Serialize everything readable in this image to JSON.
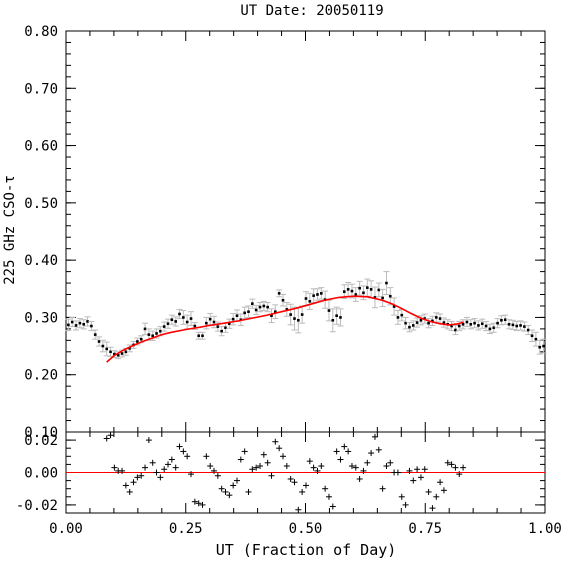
{
  "chart_data": [
    {
      "type": "scatter",
      "title": "UT Date: 20050119",
      "xlabel": "",
      "ylabel": "225 GHz CSO-τ",
      "xlim": [
        0.0,
        1.0
      ],
      "ylim": [
        0.1,
        0.8
      ],
      "yticks": [
        "0.80",
        "0.70",
        "0.60",
        "0.50",
        "0.40",
        "0.30",
        "0.20",
        "0.10"
      ],
      "grid": false,
      "series": [
        {
          "marker": "dot-with-errorbar",
          "color": "#000000",
          "errorbar_color": "#bbbbbb",
          "x": [
            0.005,
            0.013,
            0.021,
            0.029,
            0.037,
            0.045,
            0.053,
            0.061,
            0.069,
            0.077,
            0.085,
            0.093,
            0.101,
            0.109,
            0.117,
            0.125,
            0.133,
            0.141,
            0.149,
            0.157,
            0.165,
            0.173,
            0.181,
            0.189,
            0.197,
            0.205,
            0.213,
            0.221,
            0.229,
            0.237,
            0.245,
            0.253,
            0.261,
            0.269,
            0.277,
            0.285,
            0.293,
            0.301,
            0.309,
            0.317,
            0.325,
            0.333,
            0.341,
            0.349,
            0.357,
            0.365,
            0.373,
            0.381,
            0.389,
            0.397,
            0.405,
            0.413,
            0.421,
            0.429,
            0.437,
            0.445,
            0.453,
            0.461,
            0.469,
            0.477,
            0.485,
            0.493,
            0.501,
            0.509,
            0.517,
            0.525,
            0.533,
            0.541,
            0.549,
            0.557,
            0.565,
            0.573,
            0.581,
            0.589,
            0.597,
            0.605,
            0.613,
            0.621,
            0.629,
            0.637,
            0.645,
            0.653,
            0.661,
            0.669,
            0.677,
            0.685,
            0.693,
            0.701,
            0.709,
            0.717,
            0.725,
            0.733,
            0.741,
            0.749,
            0.757,
            0.765,
            0.773,
            0.781,
            0.789,
            0.797,
            0.805,
            0.813,
            0.821,
            0.829,
            0.837,
            0.845,
            0.853,
            0.861,
            0.869,
            0.877,
            0.885,
            0.893,
            0.901,
            0.909,
            0.917,
            0.925,
            0.933,
            0.941,
            0.949,
            0.957,
            0.965,
            0.973,
            0.981,
            0.989,
            0.997
          ],
          "y": [
            0.287,
            0.292,
            0.286,
            0.29,
            0.288,
            0.293,
            0.285,
            0.27,
            0.258,
            0.25,
            0.245,
            0.24,
            0.236,
            0.234,
            0.237,
            0.24,
            0.246,
            0.252,
            0.258,
            0.262,
            0.28,
            0.27,
            0.268,
            0.272,
            0.276,
            0.284,
            0.289,
            0.296,
            0.293,
            0.306,
            0.3,
            0.292,
            0.298,
            0.285,
            0.268,
            0.268,
            0.29,
            0.297,
            0.292,
            0.284,
            0.276,
            0.282,
            0.289,
            0.297,
            0.303,
            0.296,
            0.308,
            0.31,
            0.324,
            0.313,
            0.318,
            0.32,
            0.318,
            0.303,
            0.31,
            0.342,
            0.33,
            0.314,
            0.305,
            0.298,
            0.295,
            0.305,
            0.333,
            0.328,
            0.338,
            0.34,
            0.342,
            0.331,
            0.312,
            0.295,
            0.303,
            0.3,
            0.345,
            0.349,
            0.346,
            0.34,
            0.351,
            0.343,
            0.352,
            0.349,
            0.335,
            0.348,
            0.334,
            0.36,
            0.337,
            0.319,
            0.3,
            0.304,
            0.29,
            0.283,
            0.286,
            0.291,
            0.295,
            0.298,
            0.29,
            0.294,
            0.3,
            0.298,
            0.291,
            0.288,
            0.285,
            0.278,
            0.285,
            0.288,
            0.292,
            0.288,
            0.29,
            0.286,
            0.289,
            0.285,
            0.28,
            0.282,
            0.29,
            0.295,
            0.296,
            0.288,
            0.287,
            0.285,
            0.286,
            0.284,
            0.278,
            0.268,
            0.262,
            0.248,
            0.25
          ],
          "yerr": [
            0.01,
            0.008,
            0.008,
            0.008,
            0.008,
            0.008,
            0.008,
            0.008,
            0.008,
            0.01,
            0.012,
            0.008,
            0.006,
            0.006,
            0.006,
            0.006,
            0.006,
            0.006,
            0.006,
            0.006,
            0.01,
            0.01,
            0.008,
            0.008,
            0.008,
            0.008,
            0.008,
            0.008,
            0.008,
            0.008,
            0.012,
            0.012,
            0.012,
            0.006,
            0.006,
            0.006,
            0.01,
            0.01,
            0.01,
            0.008,
            0.008,
            0.008,
            0.008,
            0.01,
            0.01,
            0.01,
            0.01,
            0.01,
            0.008,
            0.008,
            0.008,
            0.008,
            0.008,
            0.012,
            0.012,
            0.006,
            0.01,
            0.012,
            0.018,
            0.02,
            0.022,
            0.015,
            0.012,
            0.014,
            0.012,
            0.01,
            0.01,
            0.015,
            0.018,
            0.02,
            0.015,
            0.015,
            0.012,
            0.012,
            0.012,
            0.012,
            0.012,
            0.012,
            0.015,
            0.015,
            0.018,
            0.012,
            0.015,
            0.02,
            0.015,
            0.015,
            0.012,
            0.01,
            0.01,
            0.008,
            0.008,
            0.008,
            0.008,
            0.008,
            0.008,
            0.008,
            0.008,
            0.008,
            0.008,
            0.008,
            0.008,
            0.008,
            0.008,
            0.008,
            0.008,
            0.008,
            0.008,
            0.008,
            0.008,
            0.008,
            0.008,
            0.008,
            0.008,
            0.008,
            0.008,
            0.008,
            0.008,
            0.008,
            0.008,
            0.008,
            0.008,
            0.01,
            0.012,
            0.012,
            0.012
          ]
        },
        {
          "marker": "line",
          "color": "#ff0000",
          "x": [
            0.085,
            0.1,
            0.12,
            0.14,
            0.16,
            0.18,
            0.2,
            0.22,
            0.25,
            0.28,
            0.3,
            0.33,
            0.36,
            0.39,
            0.42,
            0.45,
            0.48,
            0.51,
            0.54,
            0.57,
            0.6,
            0.63,
            0.66,
            0.68,
            0.7,
            0.72,
            0.74,
            0.76,
            0.78,
            0.8,
            0.82,
            0.83
          ],
          "y": [
            0.222,
            0.233,
            0.243,
            0.251,
            0.258,
            0.264,
            0.27,
            0.274,
            0.279,
            0.283,
            0.286,
            0.29,
            0.294,
            0.299,
            0.304,
            0.31,
            0.316,
            0.323,
            0.33,
            0.335,
            0.337,
            0.336,
            0.33,
            0.324,
            0.316,
            0.307,
            0.299,
            0.293,
            0.289,
            0.287,
            0.289,
            0.292
          ]
        }
      ]
    },
    {
      "type": "scatter",
      "title": "",
      "xlabel": "UT (Fraction of Day)",
      "ylabel": "",
      "xlim": [
        0.0,
        1.0
      ],
      "ylim": [
        -0.025,
        0.025
      ],
      "xticks": [
        "0.00",
        "0.25",
        "0.50",
        "0.75",
        "1.00"
      ],
      "yticks": [
        "0.02",
        "0.00",
        "-0.02"
      ],
      "grid": false,
      "zero_line_color": "#ff0000",
      "series": [
        {
          "marker": "plus",
          "color": "#000000",
          "x": [
            0.085,
            0.093,
            0.101,
            0.109,
            0.117,
            0.125,
            0.133,
            0.141,
            0.149,
            0.157,
            0.165,
            0.173,
            0.181,
            0.189,
            0.197,
            0.205,
            0.213,
            0.221,
            0.229,
            0.237,
            0.245,
            0.253,
            0.261,
            0.269,
            0.277,
            0.285,
            0.293,
            0.301,
            0.309,
            0.317,
            0.325,
            0.333,
            0.341,
            0.349,
            0.357,
            0.365,
            0.373,
            0.381,
            0.389,
            0.397,
            0.405,
            0.413,
            0.421,
            0.429,
            0.437,
            0.445,
            0.453,
            0.461,
            0.469,
            0.477,
            0.485,
            0.493,
            0.501,
            0.509,
            0.517,
            0.525,
            0.533,
            0.541,
            0.549,
            0.557,
            0.565,
            0.573,
            0.581,
            0.589,
            0.597,
            0.605,
            0.613,
            0.621,
            0.629,
            0.637,
            0.645,
            0.653,
            0.661,
            0.669,
            0.677,
            0.685,
            0.693,
            0.701,
            0.709,
            0.717,
            0.725,
            0.733,
            0.741,
            0.749,
            0.757,
            0.765,
            0.773,
            0.781,
            0.789,
            0.797,
            0.805,
            0.813,
            0.821,
            0.829
          ],
          "y": [
            0.021,
            0.023,
            0.003,
            0.001,
            0.001,
            -0.008,
            -0.012,
            -0.006,
            -0.003,
            -0.002,
            0.003,
            0.02,
            0.006,
            0.0,
            -0.003,
            0.002,
            0.005,
            0.008,
            0.003,
            0.016,
            0.013,
            0.01,
            -0.001,
            -0.018,
            -0.019,
            -0.02,
            0.01,
            0.004,
            0.001,
            -0.002,
            -0.01,
            -0.012,
            -0.014,
            -0.008,
            -0.005,
            0.008,
            0.013,
            -0.012,
            0.002,
            0.003,
            0.004,
            0.011,
            0.006,
            -0.002,
            0.019,
            0.015,
            0.01,
            0.004,
            -0.004,
            -0.006,
            -0.023,
            -0.012,
            -0.008,
            0.007,
            0.003,
            0.001,
            0.004,
            -0.01,
            -0.015,
            -0.021,
            0.013,
            0.008,
            0.016,
            0.013,
            0.004,
            0.003,
            -0.004,
            0.001,
            0.006,
            0.012,
            0.022,
            0.014,
            -0.01,
            0.004,
            0.006,
            0.0,
            0.0,
            -0.015,
            -0.02,
            0.001,
            -0.005,
            0.002,
            -0.003,
            0.002,
            -0.012,
            -0.022,
            -0.015,
            -0.006,
            -0.011,
            0.006,
            0.005,
            0.003,
            -0.001,
            0.003
          ]
        }
      ]
    }
  ]
}
